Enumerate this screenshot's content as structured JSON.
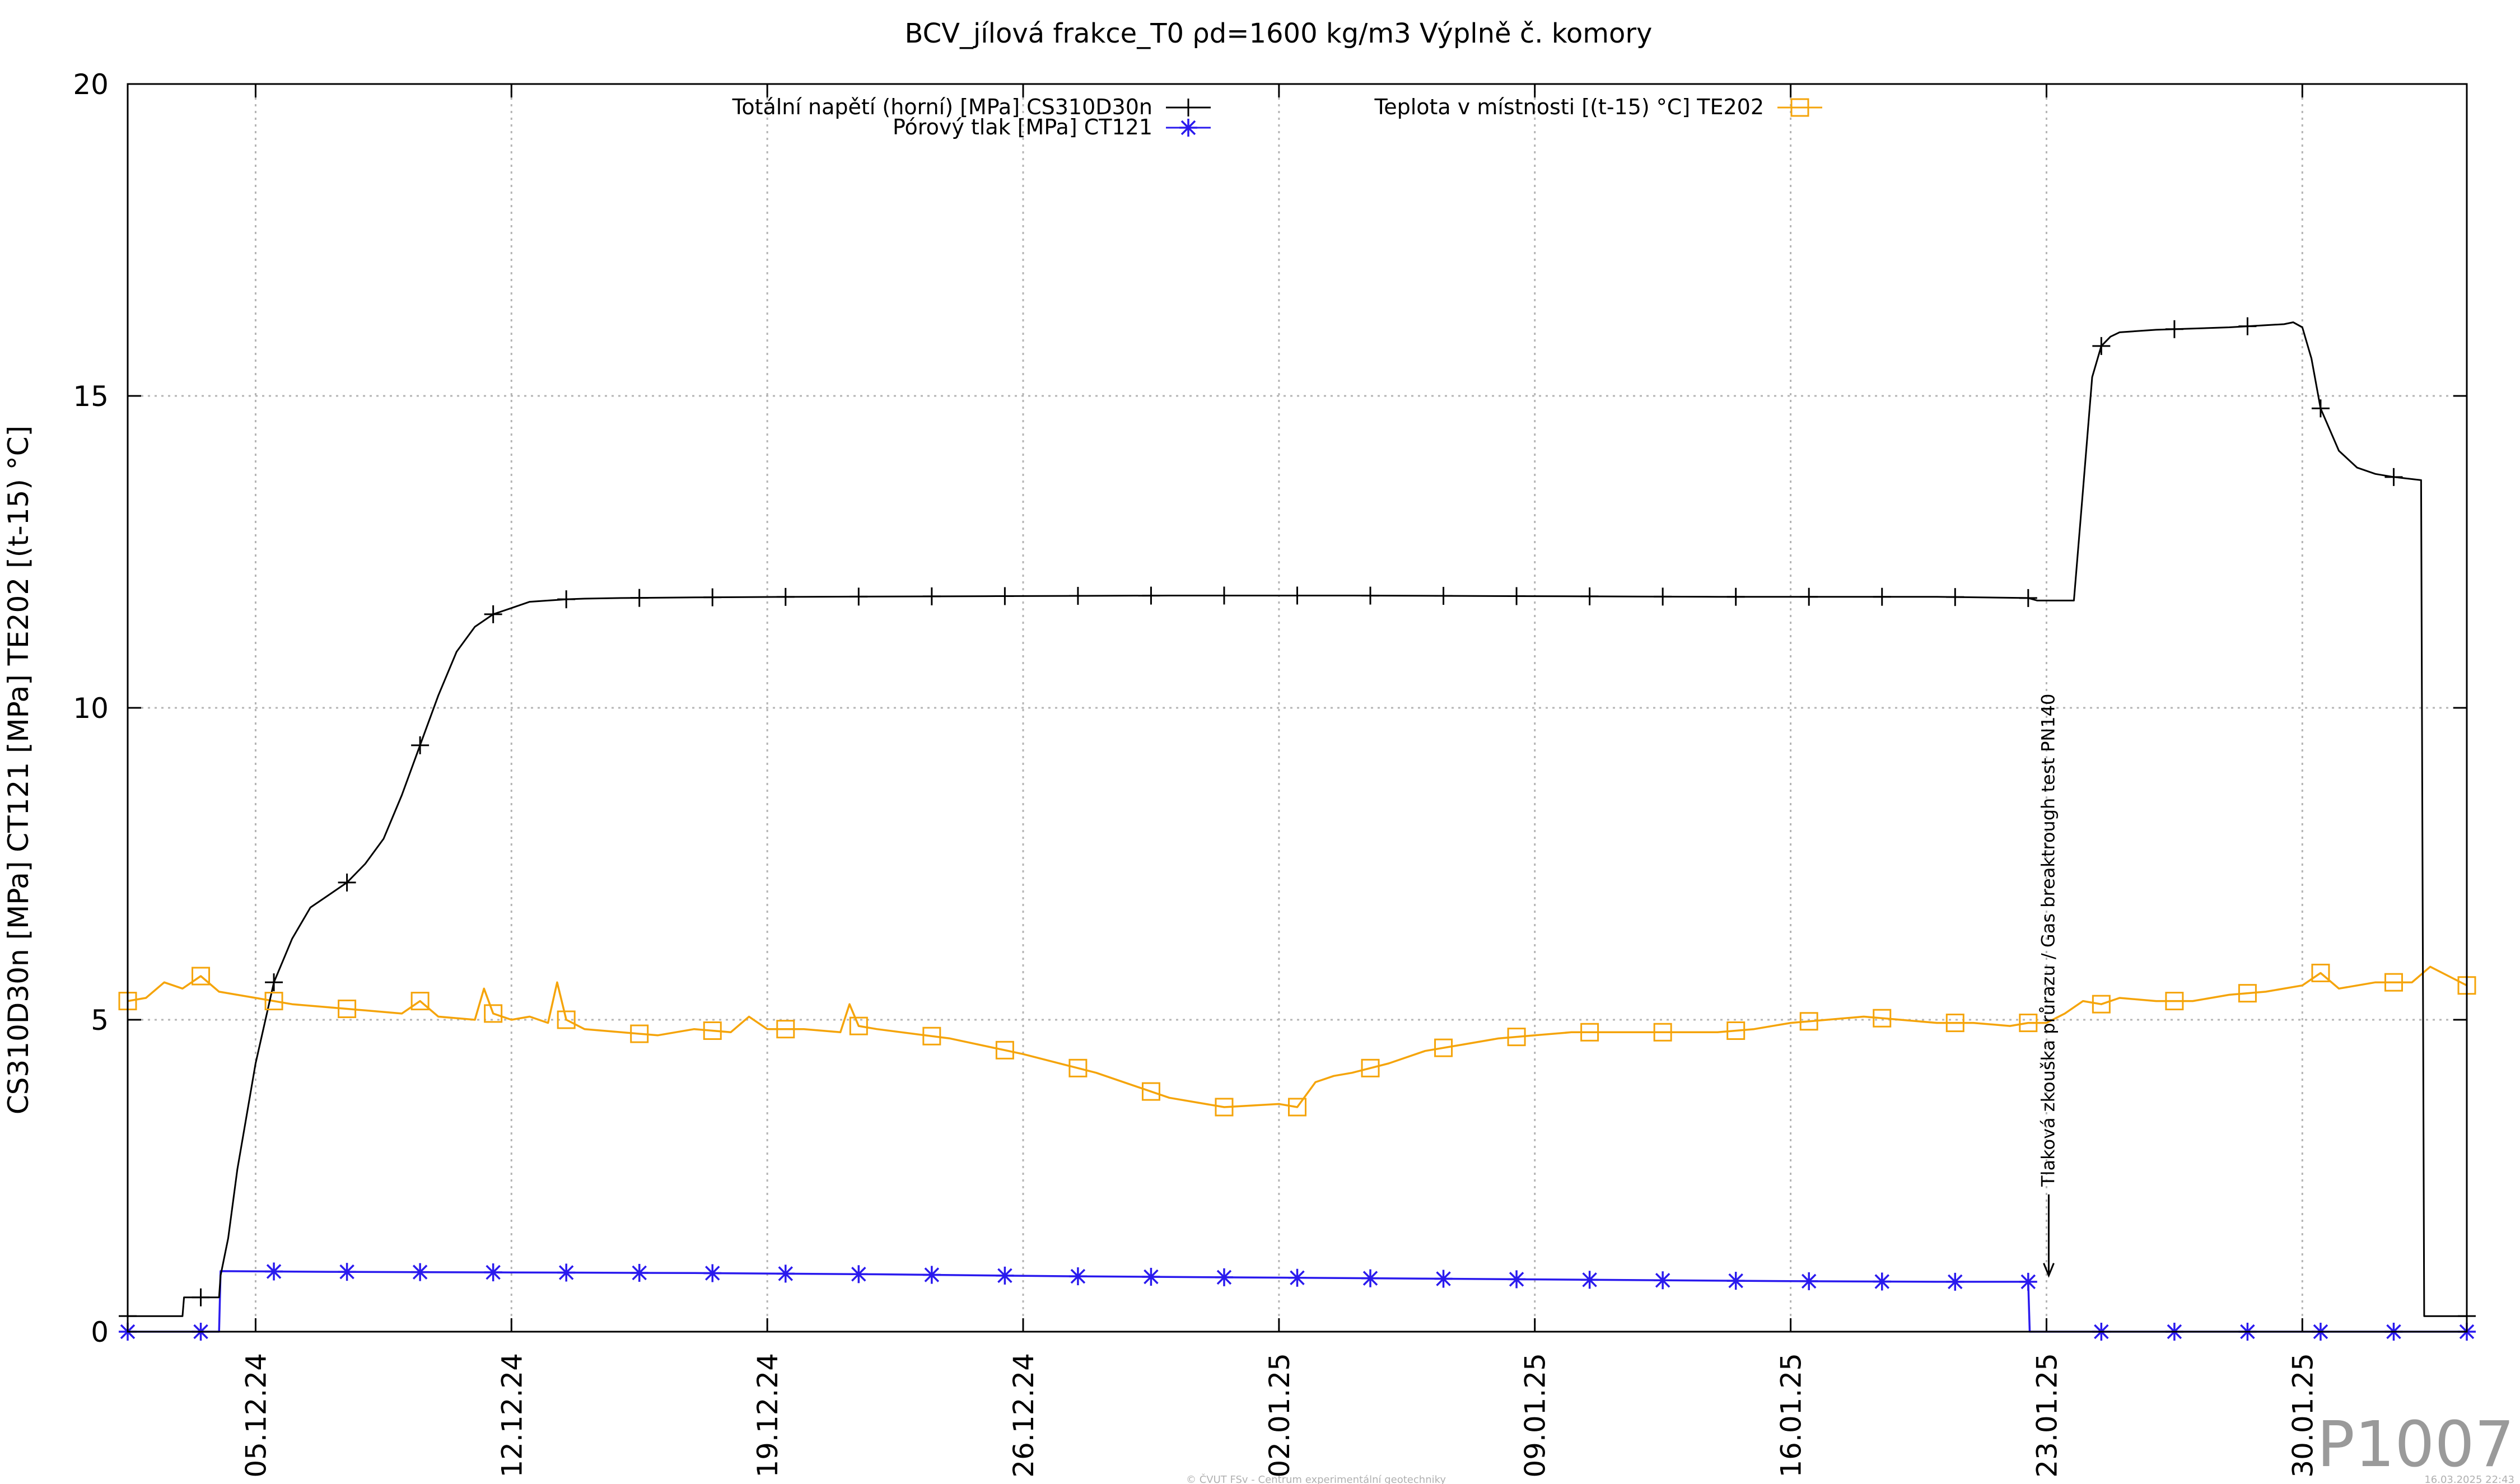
{
  "chart_data": {
    "type": "line",
    "title": "BCV_jílová frakce_T0 ρd=1600 kg/m3 Výplně č. komory",
    "ylabel": "CS310D30n [MPa] CT121 [MPa] TE202 [(t-15) °C]",
    "xlabel": "",
    "ylim": [
      0,
      20
    ],
    "xlim": [
      "01.12.24 12:00",
      "03.02.25 12:00"
    ],
    "yticks": [
      0,
      5,
      10,
      15,
      20
    ],
    "ytick_labels": [
      "0",
      "5",
      "10",
      "15",
      "20"
    ],
    "xticks": [
      "05.12.24",
      "12.12.24",
      "19.12.24",
      "26.12.24",
      "02.01.25",
      "09.01.25",
      "16.01.25",
      "23.01.25",
      "30.01.25"
    ],
    "grid": true,
    "legend_position": "top",
    "series": [
      {
        "name": "Totální napětí (horní) [MPa] CS310D30n",
        "color": "#000000",
        "marker": "plus",
        "x": [
          "01.12.24 12:00",
          "02.12.24 12:00",
          "03.12.24 00:00",
          "03.12.24 01:00",
          "03.12.24 23:00",
          "04.12.24 00:00",
          "04.12.24 01:00",
          "04.12.24 06:00",
          "04.12.24 12:00",
          "05.12.24 00:00",
          "05.12.24 12:00",
          "06.12.24 00:00",
          "06.12.24 12:00",
          "07.12.24 00:00",
          "07.12.24 12:00",
          "08.12.24 00:00",
          "08.12.24 12:00",
          "09.12.24 00:00",
          "09.12.24 12:00",
          "10.12.24 00:00",
          "10.12.24 12:00",
          "11.12.24 00:00",
          "11.12.24 12:00",
          "12.12.24 00:00",
          "12.12.24 12:00",
          "13.12.24 00:00",
          "13.12.24 12:00",
          "14.12.24 00:00",
          "15.12.24 00:00",
          "17.12.24 00:00",
          "20.12.24 00:00",
          "25.12.24 00:00",
          "30.12.24 00:00",
          "04.01.25 00:00",
          "09.01.25 00:00",
          "14.01.25 00:00",
          "20.01.25 00:00",
          "22.01.25 12:00",
          "22.01.25 18:00",
          "23.01.25 00:00",
          "23.01.25 18:00",
          "24.01.25 00:00",
          "24.01.25 06:00",
          "24.01.25 12:00",
          "24.01.25 18:00",
          "25.01.25 00:00",
          "26.01.25 00:00",
          "28.01.25 00:00",
          "29.01.25 12:00",
          "29.01.25 18:00",
          "30.01.25 00:00",
          "30.01.25 06:00",
          "30.01.25 12:00",
          "31.01.25 00:00",
          "31.01.25 12:00",
          "01.02.25 00:00",
          "01.02.25 12:00",
          "02.02.25 06:00",
          "02.02.25 08:00",
          "02.02.25 12:00",
          "03.02.25 06:00",
          "03.02.25 12:00"
        ],
        "y": [
          0.25,
          0.25,
          0.25,
          0.55,
          0.55,
          0.55,
          0.9,
          1.5,
          2.6,
          4.3,
          5.6,
          6.3,
          6.8,
          7.0,
          7.2,
          7.5,
          7.9,
          8.6,
          9.4,
          10.2,
          10.9,
          11.3,
          11.5,
          11.6,
          11.7,
          11.72,
          11.74,
          11.75,
          11.76,
          11.77,
          11.78,
          11.79,
          11.8,
          11.8,
          11.79,
          11.78,
          11.78,
          11.76,
          11.72,
          11.72,
          11.72,
          13.5,
          15.3,
          15.8,
          15.95,
          16.02,
          16.06,
          16.1,
          16.15,
          16.18,
          16.1,
          15.6,
          14.8,
          14.12,
          13.85,
          13.75,
          13.7,
          13.65,
          0.25,
          0.25,
          0.25,
          0.25
        ]
      },
      {
        "name": "Pórový tlak [MPa] CT121",
        "color": "#2a1aee",
        "marker": "star",
        "x": [
          "01.12.24 12:00",
          "04.12.24 00:00",
          "04.12.24 01:00",
          "07.12.24 00:00",
          "12.12.24 00:00",
          "17.12.24 00:00",
          "22.12.24 00:00",
          "27.12.24 00:00",
          "01.01.25 00:00",
          "06.01.25 00:00",
          "11.01.25 00:00",
          "16.01.25 00:00",
          "20.01.25 00:00",
          "22.01.25 12:00",
          "22.01.25 13:00",
          "25.01.25 00:00",
          "30.01.25 00:00",
          "03.02.25 12:00"
        ],
        "y": [
          0.0,
          0.0,
          0.97,
          0.96,
          0.95,
          0.94,
          0.92,
          0.89,
          0.87,
          0.85,
          0.83,
          0.81,
          0.8,
          0.8,
          0.0,
          0.0,
          0.0,
          0.0
        ]
      },
      {
        "name": "Teplota v místnosti [(t-15) °C] TE202",
        "color": "#f5a40a",
        "marker": "square",
        "x": [
          "01.12.24 12:00",
          "02.12.24 00:00",
          "02.12.24 12:00",
          "03.12.24 00:00",
          "03.12.24 12:00",
          "04.12.24 00:00",
          "05.12.24 00:00",
          "06.12.24 00:00",
          "07.12.24 00:00",
          "08.12.24 00:00",
          "09.12.24 00:00",
          "09.12.24 12:00",
          "10.12.24 00:00",
          "11.12.24 00:00",
          "11.12.24 06:00",
          "11.12.24 12:00",
          "12.12.24 00:00",
          "12.12.24 12:00",
          "13.12.24 00:00",
          "13.12.24 06:00",
          "13.12.24 12:00",
          "14.12.24 00:00",
          "15.12.24 00:00",
          "16.12.24 00:00",
          "17.12.24 00:00",
          "18.12.24 00:00",
          "18.12.24 12:00",
          "19.12.24 00:00",
          "20.12.24 00:00",
          "21.12.24 00:00",
          "21.12.24 06:00",
          "21.12.24 12:00",
          "22.12.24 00:00",
          "24.12.24 00:00",
          "26.12.24 00:00",
          "28.12.24 00:00",
          "30.12.24 00:00",
          "31.12.24 12:00",
          "02.01.25 00:00",
          "02.01.25 12:00",
          "03.01.25 00:00",
          "03.01.25 12:00",
          "04.01.25 00:00",
          "05.01.25 00:00",
          "06.01.25 00:00",
          "07.01.25 00:00",
          "08.01.25 00:00",
          "09.01.25 00:00",
          "10.01.25 00:00",
          "12.01.25 00:00",
          "14.01.25 00:00",
          "15.01.25 00:00",
          "16.01.25 00:00",
          "17.01.25 00:00",
          "18.01.25 00:00",
          "19.01.25 00:00",
          "20.01.25 00:00",
          "21.01.25 00:00",
          "22.01.25 00:00",
          "22.01.25 12:00",
          "23.01.25 00:00",
          "23.01.25 12:00",
          "24.01.25 00:00",
          "24.01.25 12:00",
          "25.01.25 00:00",
          "26.01.25 00:00",
          "27.01.25 00:00",
          "28.01.25 00:00",
          "29.01.25 00:00",
          "30.01.25 00:00",
          "30.01.25 12:00",
          "31.01.25 00:00",
          "01.02.25 00:00",
          "02.02.25 00:00",
          "02.02.25 12:00",
          "03.02.25 00:00",
          "03.02.25 12:00"
        ],
        "y": [
          5.3,
          5.35,
          5.6,
          5.5,
          5.7,
          5.45,
          5.35,
          5.25,
          5.2,
          5.15,
          5.1,
          5.3,
          5.05,
          5.0,
          5.5,
          5.1,
          5.0,
          5.05,
          4.95,
          5.6,
          5.0,
          4.85,
          4.8,
          4.75,
          4.85,
          4.8,
          5.05,
          4.85,
          4.85,
          4.8,
          5.25,
          4.9,
          4.85,
          4.7,
          4.45,
          4.15,
          3.75,
          3.6,
          3.65,
          3.6,
          4.0,
          4.1,
          4.15,
          4.3,
          4.5,
          4.6,
          4.7,
          4.75,
          4.8,
          4.8,
          4.8,
          4.85,
          4.95,
          5.0,
          5.05,
          5.0,
          4.95,
          4.95,
          4.9,
          4.95,
          4.95,
          5.1,
          5.3,
          5.25,
          5.35,
          5.3,
          5.3,
          5.4,
          5.45,
          5.55,
          5.75,
          5.5,
          5.6,
          5.6,
          5.85,
          5.7,
          5.55
        ]
      }
    ],
    "annotations": [
      {
        "text": "Tlaková zkouška průrazu / Gas breaktrough test PN140",
        "x": "23.01.25 00:00",
        "arrow_from_y": 2.2,
        "arrow_to_y": 0.9
      }
    ]
  },
  "watermark": "P1007",
  "footer_left": "© ČVUT FSv - Centrum experimentální geotechniky",
  "footer_right": "16.03.2025 22:43"
}
